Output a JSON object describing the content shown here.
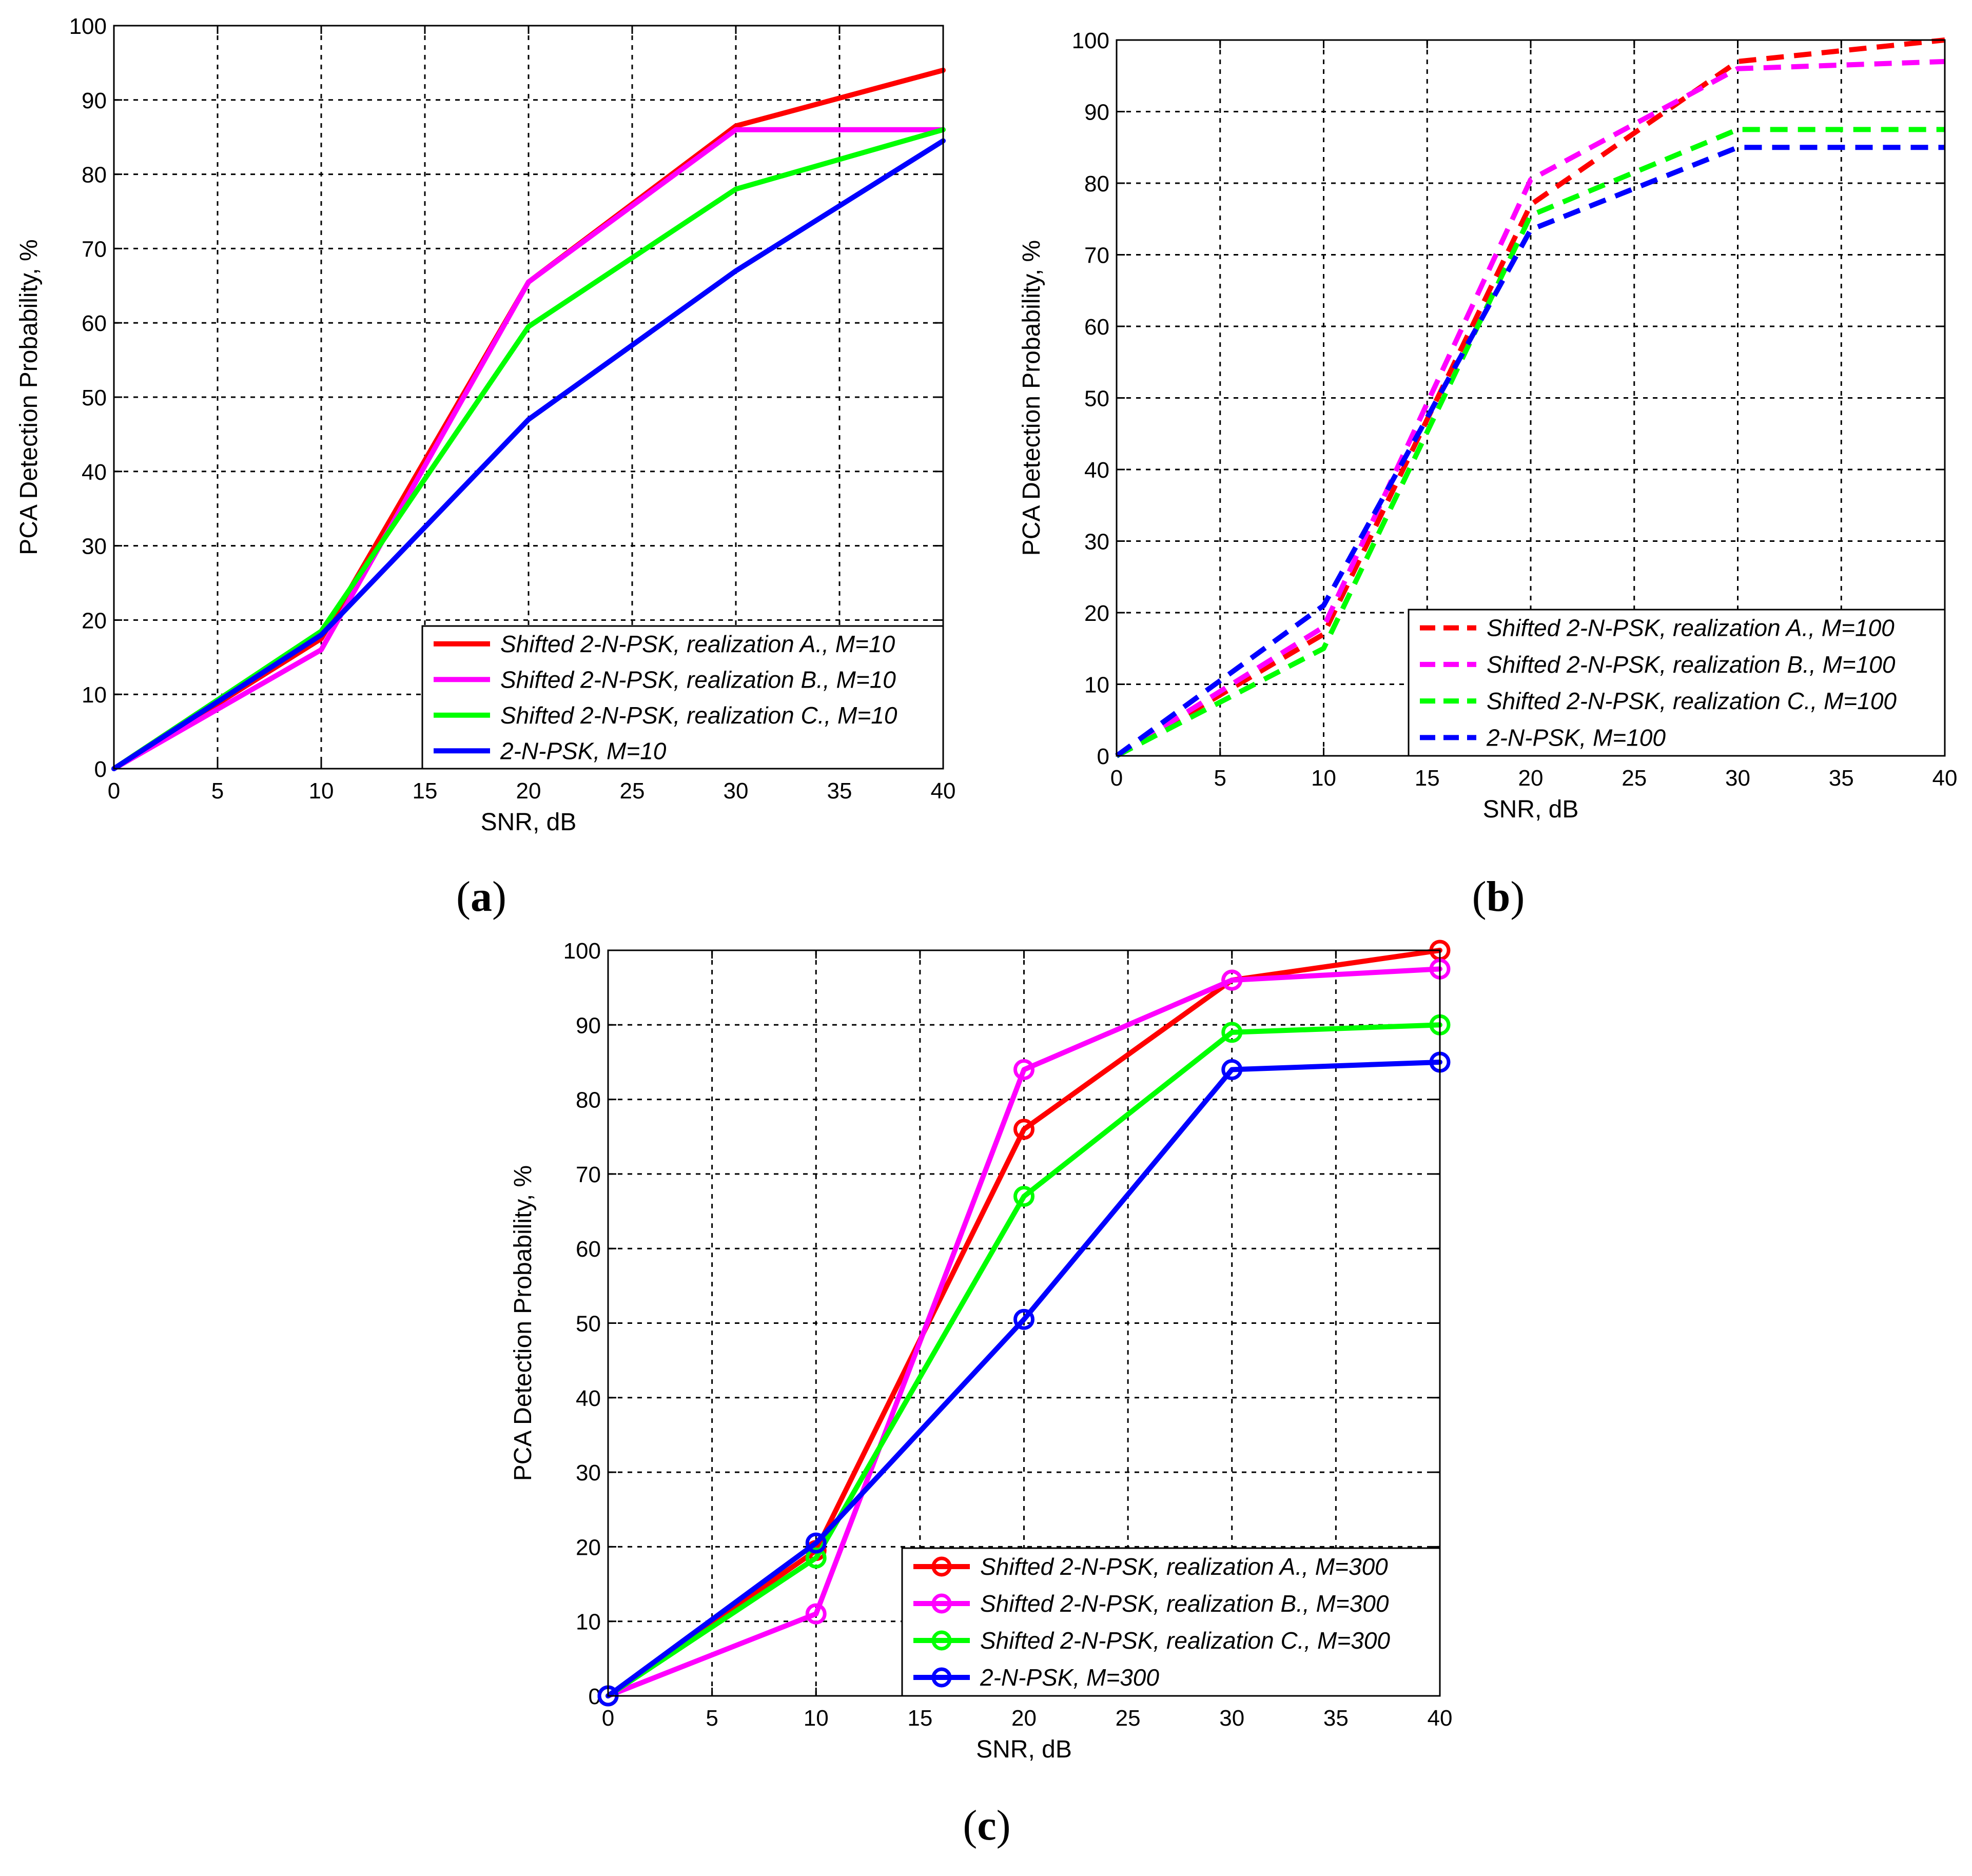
{
  "chart_data": [
    {
      "id": "a",
      "type": "line",
      "caption": {
        "open": "(",
        "letter": "a",
        "close": ")"
      },
      "xlabel": "SNR, dB",
      "ylabel": "PCA Detection Probability, %",
      "xlim": [
        0,
        40
      ],
      "ylim": [
        0,
        100
      ],
      "xticks": [
        0,
        5,
        10,
        15,
        20,
        25,
        30,
        35,
        40
      ],
      "yticks": [
        0,
        10,
        20,
        30,
        40,
        50,
        60,
        70,
        80,
        90,
        100
      ],
      "grid": true,
      "legend_position": "bottom-right",
      "line_style": "solid",
      "markers": false,
      "series": [
        {
          "name": "Shifted 2-N-PSK, realization A., M=10",
          "color": "#ff0000",
          "x": [
            0,
            10,
            20,
            30,
            40
          ],
          "y": [
            0,
            17.5,
            65.5,
            86.5,
            94
          ]
        },
        {
          "name": "Shifted 2-N-PSK, realization B., M=10",
          "color": "#ff00ff",
          "x": [
            0,
            10,
            20,
            30,
            40
          ],
          "y": [
            0,
            16,
            65.5,
            86,
            86
          ]
        },
        {
          "name": "Shifted 2-N-PSK, realization C., M=10",
          "color": "#00ff00",
          "x": [
            0,
            10,
            20,
            30,
            40
          ],
          "y": [
            0,
            18.5,
            59.5,
            78,
            86
          ]
        },
        {
          "name": "2-N-PSK, M=10",
          "color": "#0000ff",
          "x": [
            0,
            10,
            20,
            30,
            40
          ],
          "y": [
            0,
            18,
            47,
            67,
            84.5
          ]
        }
      ]
    },
    {
      "id": "b",
      "type": "line",
      "caption": {
        "open": "(",
        "letter": "b",
        "close": ")"
      },
      "xlabel": "SNR, dB",
      "ylabel": "PCA Detection Probability, %",
      "xlim": [
        0,
        40
      ],
      "ylim": [
        0,
        100
      ],
      "xticks": [
        0,
        5,
        10,
        15,
        20,
        25,
        30,
        35,
        40
      ],
      "yticks": [
        0,
        10,
        20,
        30,
        40,
        50,
        60,
        70,
        80,
        90,
        100
      ],
      "grid": true,
      "legend_position": "bottom-right",
      "line_style": "dashed",
      "markers": false,
      "series": [
        {
          "name": "Shifted 2-N-PSK, realization A., M=100",
          "color": "#ff0000",
          "x": [
            0,
            10,
            20,
            30,
            40
          ],
          "y": [
            0,
            17,
            77,
            97,
            100
          ]
        },
        {
          "name": "Shifted 2-N-PSK, realization B., M=100",
          "color": "#ff00ff",
          "x": [
            0,
            10,
            20,
            30,
            40
          ],
          "y": [
            0,
            18,
            80.5,
            96,
            97
          ]
        },
        {
          "name": "Shifted 2-N-PSK, realization C., M=100",
          "color": "#00ff00",
          "x": [
            0,
            10,
            20,
            30,
            40
          ],
          "y": [
            0,
            15,
            75.5,
            87.5,
            87.5
          ]
        },
        {
          "name": "2-N-PSK, M=100",
          "color": "#0000ff",
          "x": [
            0,
            10,
            20,
            30,
            40
          ],
          "y": [
            0,
            21,
            73.5,
            85,
            85
          ]
        }
      ]
    },
    {
      "id": "c",
      "type": "line",
      "caption": {
        "open": "(",
        "letter": "c",
        "close": ")"
      },
      "xlabel": "SNR, dB",
      "ylabel": "PCA Detection Probability, %",
      "xlim": [
        0,
        40
      ],
      "ylim": [
        0,
        100
      ],
      "xticks": [
        0,
        5,
        10,
        15,
        20,
        25,
        30,
        35,
        40
      ],
      "yticks": [
        0,
        10,
        20,
        30,
        40,
        50,
        60,
        70,
        80,
        90,
        100
      ],
      "grid": true,
      "legend_position": "bottom-right",
      "line_style": "solid",
      "markers": true,
      "series": [
        {
          "name": "Shifted 2-N-PSK, realization A., M=300",
          "color": "#ff0000",
          "x": [
            0,
            10,
            20,
            30,
            40
          ],
          "y": [
            0,
            19.5,
            76,
            96,
            100
          ]
        },
        {
          "name": "Shifted 2-N-PSK, realization B., M=300",
          "color": "#ff00ff",
          "x": [
            0,
            10,
            20,
            30,
            40
          ],
          "y": [
            0,
            11,
            84,
            96,
            97.5
          ]
        },
        {
          "name": "Shifted 2-N-PSK, realization C., M=300",
          "color": "#00ff00",
          "x": [
            0,
            10,
            20,
            30,
            40
          ],
          "y": [
            0,
            18.5,
            67,
            89,
            90
          ]
        },
        {
          "name": "2-N-PSK, M=300",
          "color": "#0000ff",
          "x": [
            0,
            10,
            20,
            30,
            40
          ],
          "y": [
            0,
            20.5,
            50.5,
            84,
            85
          ]
        }
      ]
    }
  ]
}
